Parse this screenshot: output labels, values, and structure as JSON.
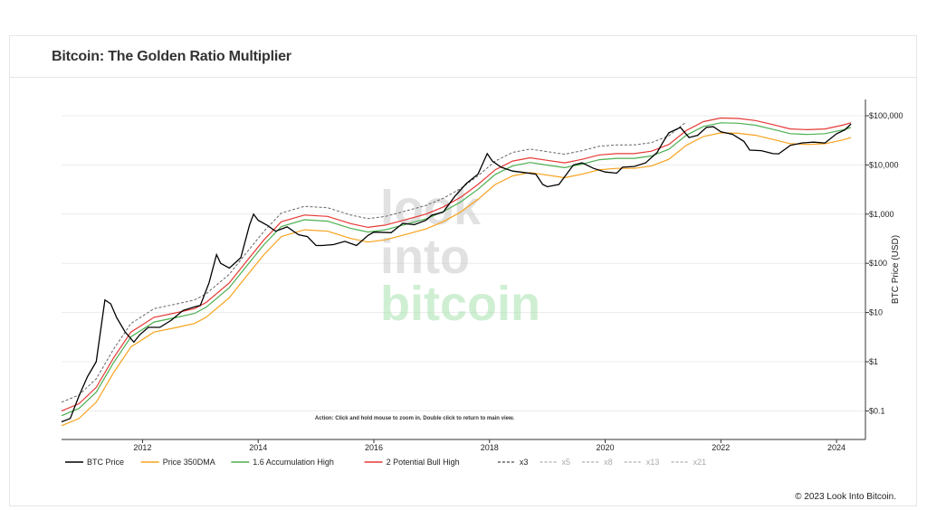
{
  "page": {
    "title": "Bitcoin: The Golden Ratio Multiplier",
    "footer": "© 2023 Look Into Bitcoin.",
    "action_hint": "Action: Click and hold mouse to zoom in.  Double click to return to main view.",
    "watermark": [
      "look",
      "into",
      "bitcoin"
    ]
  },
  "chart_data": {
    "type": "line",
    "title": "Bitcoin: The Golden Ratio Multiplier",
    "xlabel": "",
    "ylabel": "BTC Price (USD)",
    "yscale": "log",
    "ylim": [
      0.04,
      150000
    ],
    "xlim": [
      2010.6,
      2024.5
    ],
    "x_ticks": [
      {
        "value": 2012,
        "label": "2012"
      },
      {
        "value": 2014,
        "label": "2014"
      },
      {
        "value": 2016,
        "label": "2016"
      },
      {
        "value": 2018,
        "label": "2018"
      },
      {
        "value": 2020,
        "label": "2020"
      },
      {
        "value": 2022,
        "label": "2022"
      },
      {
        "value": 2024,
        "label": "2024"
      }
    ],
    "y_ticks": [
      {
        "value": 0.1,
        "label": "$0.1"
      },
      {
        "value": 1,
        "label": "$1"
      },
      {
        "value": 10,
        "label": "$10"
      },
      {
        "value": 100,
        "label": "$100"
      },
      {
        "value": 1000,
        "label": "$1,000"
      },
      {
        "value": 10000,
        "label": "$10,000"
      },
      {
        "value": 100000,
        "label": "$100,000"
      }
    ],
    "colors": {
      "btc": "#000000",
      "dma": "#f7a21b",
      "acc": "#4caf50",
      "bull": "#e53935",
      "x3": "#666666",
      "faded": "#cccccc"
    },
    "legend": [
      {
        "label": "BTC Price",
        "color": "#000000",
        "dashed": false
      },
      {
        "label": "Price 350DMA",
        "color": "#f7a21b",
        "dashed": false
      },
      {
        "label": "1.6 Accumulation High",
        "color": "#4caf50",
        "dashed": false
      },
      {
        "label": "2 Potential Bull High",
        "color": "#e53935",
        "dashed": false
      },
      {
        "label": "x3",
        "color": "#666666",
        "dashed": true
      },
      {
        "label": "x5",
        "color": "#bbbbbb",
        "dashed": true
      },
      {
        "label": "x8",
        "color": "#bbbbbb",
        "dashed": true
      },
      {
        "label": "x13",
        "color": "#bbbbbb",
        "dashed": true
      },
      {
        "label": "x21",
        "color": "#bbbbbb",
        "dashed": true
      }
    ],
    "series": [
      {
        "name": "BTC Price",
        "x": [
          2010.6,
          2010.75,
          2010.9,
          2011.05,
          2011.2,
          2011.35,
          2011.45,
          2011.55,
          2011.7,
          2011.85,
          2011.95,
          2012.1,
          2012.3,
          2012.5,
          2012.7,
          2012.9,
          2013.0,
          2013.15,
          2013.28,
          2013.35,
          2013.5,
          2013.7,
          2013.85,
          2013.92,
          2014.0,
          2014.15,
          2014.3,
          2014.5,
          2014.7,
          2014.85,
          2015.0,
          2015.1,
          2015.3,
          2015.5,
          2015.7,
          2015.9,
          2016.0,
          2016.3,
          2016.5,
          2016.7,
          2016.9,
          2017.0,
          2017.2,
          2017.4,
          2017.6,
          2017.8,
          2017.96,
          2018.05,
          2018.2,
          2018.4,
          2018.6,
          2018.8,
          2018.92,
          2019.0,
          2019.2,
          2019.45,
          2019.6,
          2019.8,
          2020.0,
          2020.2,
          2020.3,
          2020.5,
          2020.7,
          2020.9,
          2021.0,
          2021.1,
          2021.3,
          2021.45,
          2021.6,
          2021.75,
          2021.87,
          2022.0,
          2022.2,
          2022.4,
          2022.5,
          2022.7,
          2022.9,
          2023.0,
          2023.2,
          2023.4,
          2023.6,
          2023.8,
          2024.0,
          2024.15,
          2024.25
        ],
        "values": [
          0.06,
          0.07,
          0.2,
          0.5,
          1.0,
          18,
          15,
          8,
          4,
          2.5,
          3.5,
          5,
          5,
          7,
          11,
          13,
          14,
          40,
          150,
          100,
          80,
          130,
          600,
          1000,
          750,
          600,
          450,
          550,
          380,
          350,
          230,
          230,
          240,
          280,
          230,
          370,
          430,
          420,
          650,
          610,
          750,
          950,
          1100,
          2300,
          4200,
          6500,
          17000,
          12000,
          9000,
          7500,
          7000,
          6500,
          4000,
          3600,
          4000,
          10000,
          11000,
          8500,
          7200,
          6800,
          9000,
          9300,
          11000,
          18000,
          29000,
          45000,
          58000,
          36000,
          40000,
          58000,
          60000,
          47000,
          42000,
          30000,
          20000,
          19500,
          17000,
          16800,
          25000,
          28000,
          29000,
          28000,
          43000,
          52000,
          68000
        ]
      },
      {
        "name": "Price 350DMA",
        "x": [
          2010.6,
          2010.9,
          2011.2,
          2011.5,
          2011.8,
          2012.2,
          2012.6,
          2012.9,
          2013.1,
          2013.5,
          2013.8,
          2014.1,
          2014.4,
          2014.8,
          2015.2,
          2015.6,
          2015.9,
          2016.2,
          2016.6,
          2016.9,
          2017.2,
          2017.5,
          2017.8,
          2018.1,
          2018.4,
          2018.7,
          2019.0,
          2019.3,
          2019.6,
          2019.9,
          2020.2,
          2020.5,
          2020.8,
          2021.1,
          2021.4,
          2021.7,
          2022.0,
          2022.3,
          2022.6,
          2022.9,
          2023.2,
          2023.5,
          2023.8,
          2024.1,
          2024.25
        ],
        "values": [
          0.05,
          0.07,
          0.15,
          0.6,
          2,
          4,
          5,
          6,
          8,
          20,
          55,
          150,
          350,
          480,
          450,
          320,
          270,
          300,
          400,
          500,
          700,
          1100,
          2000,
          4000,
          6000,
          7000,
          6200,
          5500,
          6500,
          8000,
          8500,
          8500,
          9500,
          13000,
          25000,
          38000,
          45000,
          44000,
          40000,
          33000,
          27000,
          26000,
          27000,
          32000,
          36000
        ]
      }
    ]
  }
}
